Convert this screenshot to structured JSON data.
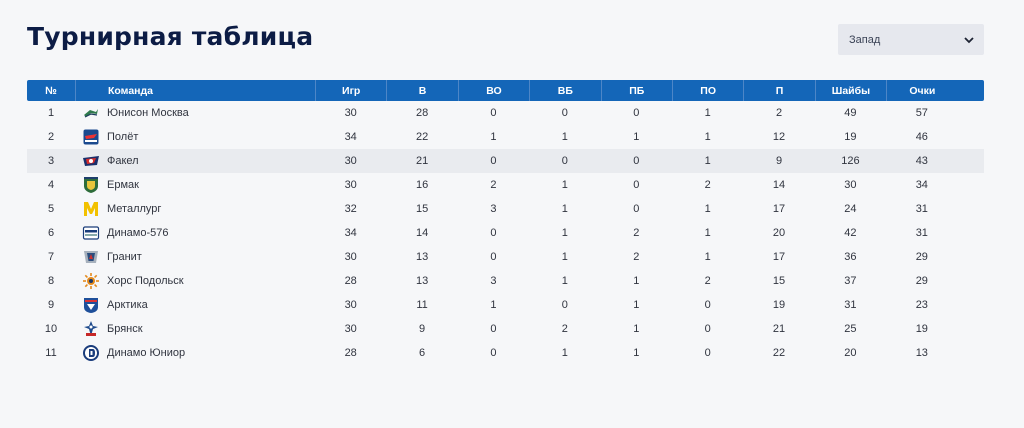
{
  "page": {
    "title": "Турнирная таблица"
  },
  "filter": {
    "selected": "Запад"
  },
  "table": {
    "headers": [
      "№",
      "Команда",
      "Игр",
      "В",
      "ВО",
      "ВБ",
      "ПБ",
      "ПО",
      "П",
      "Шайбы",
      "Очки"
    ],
    "rows": [
      {
        "pos": "1",
        "team": "Юнисон Москва",
        "games": "30",
        "w": "28",
        "wo": "0",
        "wb": "0",
        "pb": "0",
        "po": "1",
        "l": "2",
        "goals": "49",
        "pts": "57"
      },
      {
        "pos": "2",
        "team": "Полёт",
        "games": "34",
        "w": "22",
        "wo": "1",
        "wb": "1",
        "pb": "1",
        "po": "1",
        "l": "12",
        "goals": "19",
        "pts": "46"
      },
      {
        "pos": "3",
        "team": "Факел",
        "games": "30",
        "w": "21",
        "wo": "0",
        "wb": "0",
        "pb": "0",
        "po": "1",
        "l": "9",
        "goals": "126",
        "pts": "43"
      },
      {
        "pos": "4",
        "team": "Ермак",
        "games": "30",
        "w": "16",
        "wo": "2",
        "wb": "1",
        "pb": "0",
        "po": "2",
        "l": "14",
        "goals": "30",
        "pts": "34"
      },
      {
        "pos": "5",
        "team": "Металлург",
        "games": "32",
        "w": "15",
        "wo": "3",
        "wb": "1",
        "pb": "0",
        "po": "1",
        "l": "17",
        "goals": "24",
        "pts": "31"
      },
      {
        "pos": "6",
        "team": "Динамо-576",
        "games": "34",
        "w": "14",
        "wo": "0",
        "wb": "1",
        "pb": "2",
        "po": "1",
        "l": "20",
        "goals": "42",
        "pts": "31"
      },
      {
        "pos": "7",
        "team": "Гранит",
        "games": "30",
        "w": "13",
        "wo": "0",
        "wb": "1",
        "pb": "2",
        "po": "1",
        "l": "17",
        "goals": "36",
        "pts": "29"
      },
      {
        "pos": "8",
        "team": "Хорс Подольск",
        "games": "28",
        "w": "13",
        "wo": "3",
        "wb": "1",
        "pb": "1",
        "po": "2",
        "l": "15",
        "goals": "37",
        "pts": "29"
      },
      {
        "pos": "9",
        "team": "Арктика",
        "games": "30",
        "w": "11",
        "wo": "1",
        "wb": "0",
        "pb": "1",
        "po": "0",
        "l": "19",
        "goals": "31",
        "pts": "23"
      },
      {
        "pos": "10",
        "team": "Брянск",
        "games": "30",
        "w": "9",
        "wo": "0",
        "wb": "2",
        "pb": "1",
        "po": "0",
        "l": "21",
        "goals": "25",
        "pts": "19"
      },
      {
        "pos": "11",
        "team": "Динамо Юниор",
        "games": "28",
        "w": "6",
        "wo": "0",
        "wb": "1",
        "pb": "1",
        "po": "0",
        "l": "22",
        "goals": "20",
        "pts": "13"
      }
    ],
    "highlighted_row": 2,
    "logos": [
      "unison-logo-icon",
      "polet-logo-icon",
      "fakel-logo-icon",
      "ermak-logo-icon",
      "metallurg-logo-icon",
      "dynamo-576-logo-icon",
      "granit-logo-icon",
      "hors-logo-icon",
      "arktika-logo-icon",
      "bryansk-logo-icon",
      "dynamo-junior-logo-icon"
    ]
  },
  "colors": {
    "header_bg": "#1466b8",
    "title": "#0c1c45",
    "highlight_row": "#e9ebef",
    "page_bg": "#f6f7f9"
  }
}
